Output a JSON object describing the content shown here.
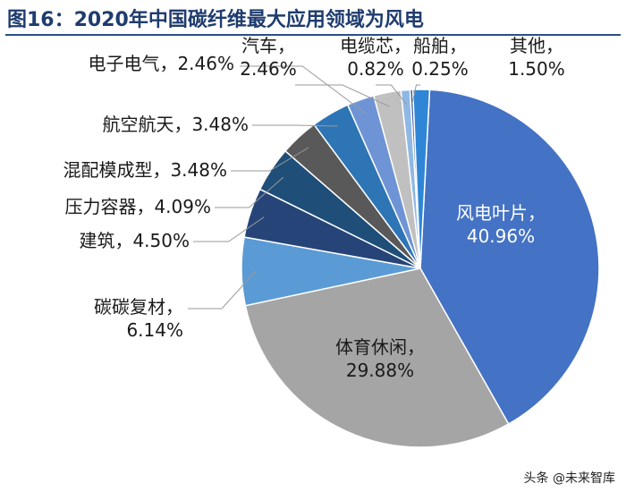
{
  "title": "图16：2020年中国碳纤维最大应用领域为风电",
  "watermark": "头条 @未来智库",
  "chart_data": {
    "type": "pie",
    "slices": [
      {
        "name": "风电叶片",
        "value": 40.96,
        "label": "40.96%",
        "color": "#4472c4"
      },
      {
        "name": "体育休闲",
        "value": 29.88,
        "label": "29.88%",
        "color": "#a5a5a5"
      },
      {
        "name": "碳碳复材",
        "value": 6.14,
        "label": "6.14%",
        "color": "#5b9bd5"
      },
      {
        "name": "建筑",
        "value": 4.5,
        "label": "4.50%",
        "color": "#264478"
      },
      {
        "name": "压力容器",
        "value": 4.09,
        "label": "4.09%",
        "color": "#1f4e79"
      },
      {
        "name": "混配模成型",
        "value": 3.48,
        "label": "3.48%",
        "color": "#595959"
      },
      {
        "name": "航空航天",
        "value": 3.48,
        "label": "3.48%",
        "color": "#2e75b6"
      },
      {
        "name": "电子电气",
        "value": 2.46,
        "label": "2.46%",
        "color": "#6f94d6"
      },
      {
        "name": "汽车",
        "value": 2.46,
        "label": "2.46%",
        "color": "#c0c0c0"
      },
      {
        "name": "电缆芯",
        "value": 0.82,
        "label": "0.82%",
        "color": "#8fb8e5"
      },
      {
        "name": "船舶",
        "value": 0.25,
        "label": "0.25%",
        "color": "#3a5fa0"
      },
      {
        "name": "其他",
        "value": 1.5,
        "label": "1.50%",
        "color": "#2f86d6"
      }
    ]
  }
}
